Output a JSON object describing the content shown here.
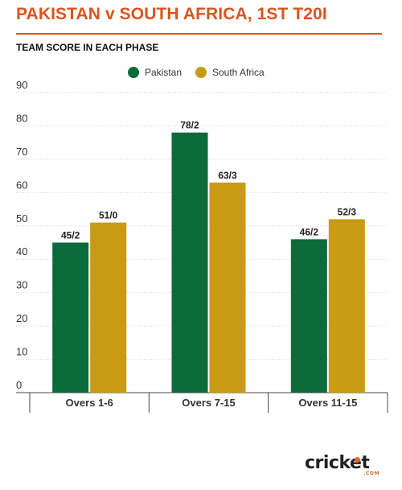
{
  "header": {
    "title": "PAKISTAN v SOUTH AFRICA, 1ST T20I",
    "subtitle": "TEAM SCORE IN EACH PHASE"
  },
  "colors": {
    "title": "#d9541f",
    "pakistan": "#0b6b3a",
    "south_africa": "#c99a14"
  },
  "chart_data": {
    "type": "bar",
    "categories": [
      "Overs 1-6",
      "Overs 7-15",
      "Overs 11-15"
    ],
    "series": [
      {
        "name": "Pakistan",
        "values": [
          45,
          78,
          46
        ],
        "labels": [
          "45/2",
          "78/2",
          "46/2"
        ],
        "color": "#0b6b3a"
      },
      {
        "name": "South Africa",
        "values": [
          51,
          63,
          52
        ],
        "labels": [
          "51/0",
          "63/3",
          "52/3"
        ],
        "color": "#c99a14"
      }
    ],
    "yticks": [
      0,
      10,
      20,
      30,
      40,
      50,
      60,
      70,
      80,
      90
    ],
    "ylim": [
      0,
      90
    ],
    "grid": true,
    "legend": "top-center"
  },
  "branding": {
    "logo_text": "cricket",
    "logo_suffix": ".COM"
  }
}
